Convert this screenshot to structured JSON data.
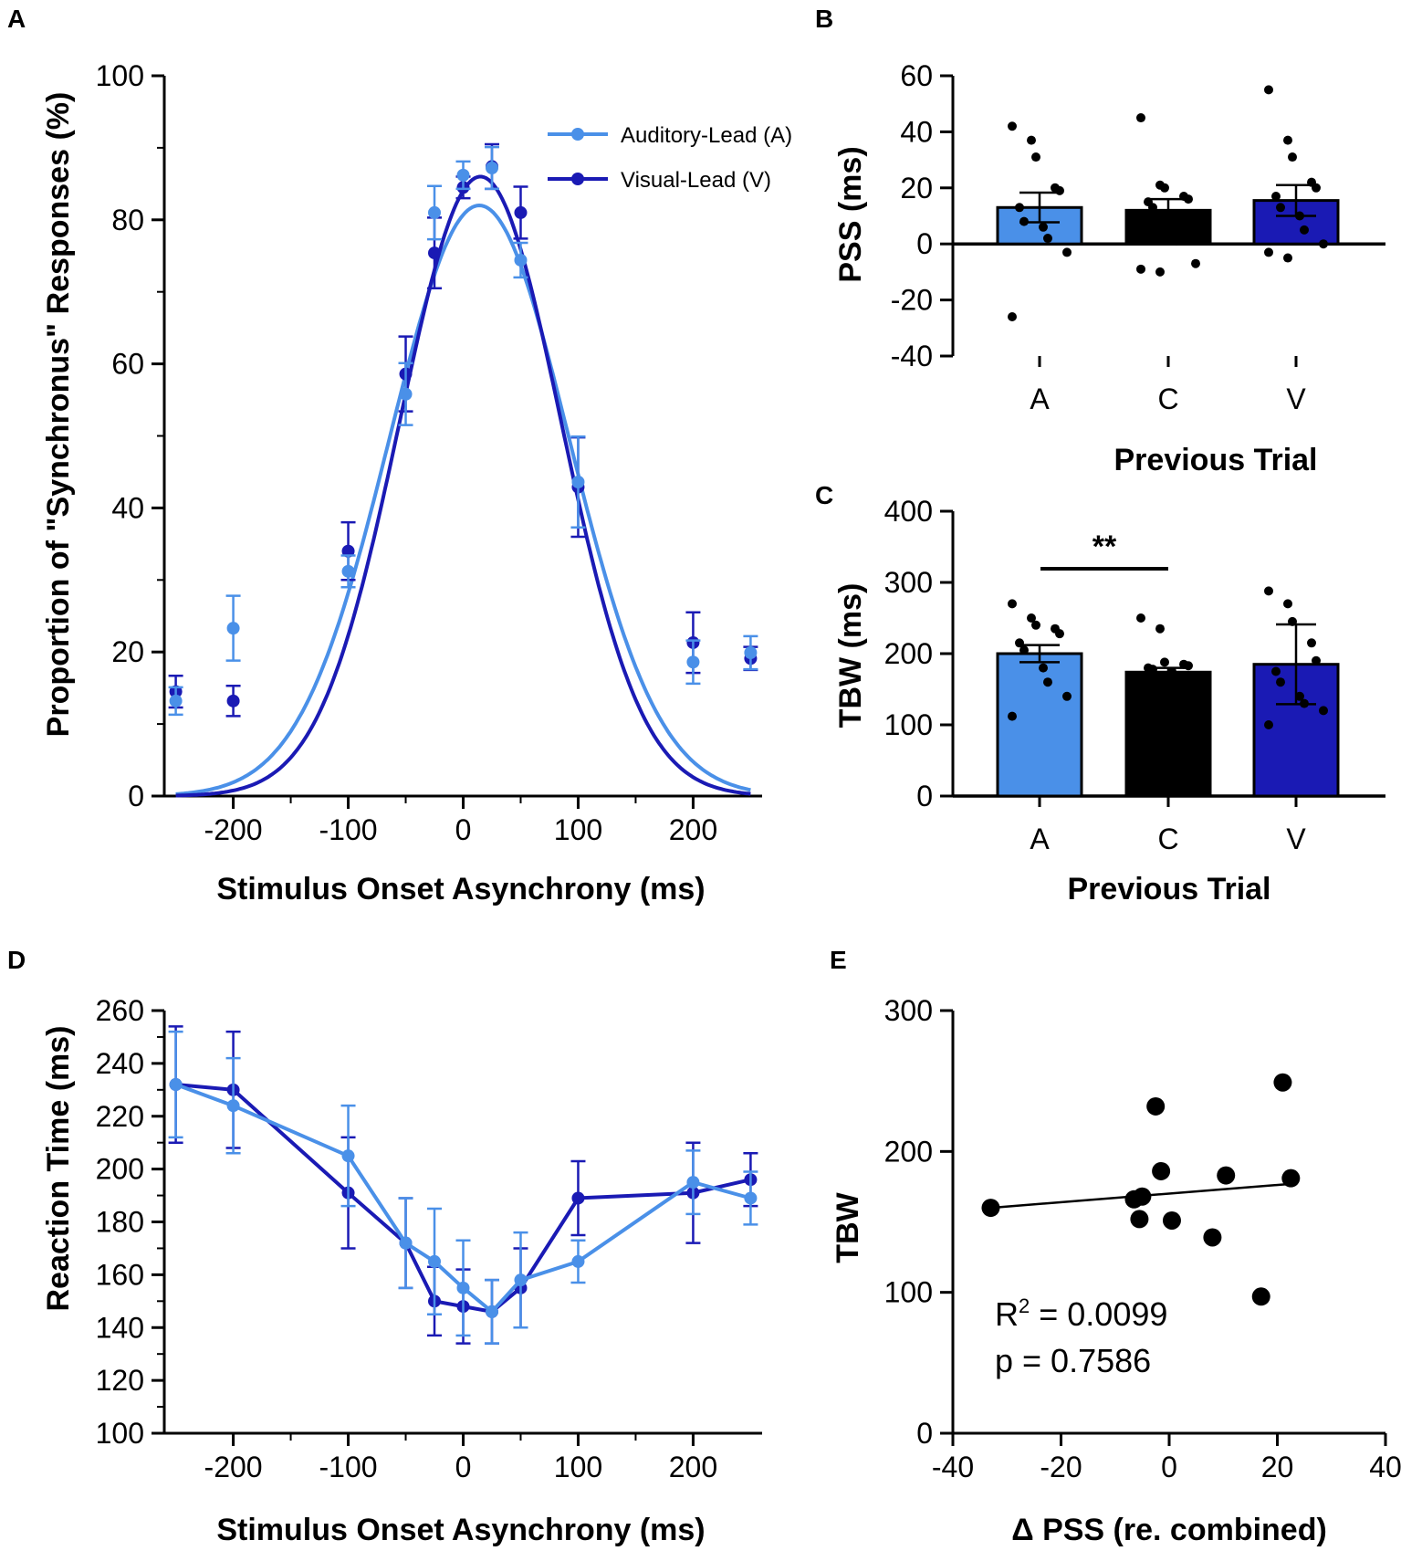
{
  "colors": {
    "light": "#4a90e8",
    "dark": "#1a1ab4",
    "black": "#000000"
  },
  "panels": {
    "A": {
      "label": "A",
      "chart_data": {
        "type": "line",
        "title": "",
        "xlabel": "Stimulus Onset Asynchrony (ms)",
        "ylabel": "Proportion of \"Synchronus\" Responses (%)",
        "xlim": [
          -260,
          260
        ],
        "ylim": [
          0,
          100
        ],
        "xticks": [
          -200,
          -100,
          0,
          100,
          200
        ],
        "yticks": [
          0,
          20,
          40,
          60,
          80,
          100
        ],
        "xtick_labels": [
          "-200",
          "-100",
          "0",
          "100",
          "200"
        ],
        "ytick_labels": [
          "0",
          "20",
          "40",
          "60",
          "80",
          "100"
        ],
        "legend": [
          "Auditory-Lead (A)",
          "Visual-Lead (V)"
        ],
        "legend_position": "top-right",
        "series": [
          {
            "name": "Auditory-Lead (A)",
            "color": "light",
            "x": [
              -250,
              -200,
              -100,
              -50,
              -25,
              0,
              25,
              50,
              100,
              200,
              250
            ],
            "y": [
              13.2,
              23.3,
              31.2,
              55.8,
              81,
              86.2,
              87.2,
              74.4,
              43.6,
              18.6,
              19.9
            ],
            "err": [
              1.9,
              4.5,
              2.2,
              4.3,
              3.7,
              1.9,
              2.9,
              2.4,
              6.3,
              3.0,
              2.3
            ],
            "fit": {
              "mu": 14,
              "sigma": 78,
              "amp": 82
            }
          },
          {
            "name": "Visual-Lead (V)",
            "color": "dark",
            "x": [
              -250,
              -200,
              -100,
              -50,
              -25,
              0,
              25,
              50,
              100,
              200,
              250
            ],
            "y": [
              14.5,
              13.2,
              34,
              58.6,
              75.4,
              84.5,
              87.4,
              81,
              42.9,
              21.3,
              19.1
            ],
            "err": [
              2.2,
              2.1,
              4.0,
              5.2,
              4.9,
              1.5,
              3.1,
              3.6,
              6.9,
              4.2,
              1.6
            ],
            "fit": {
              "mu": 15,
              "sigma": 70,
              "amp": 86
            }
          }
        ]
      }
    },
    "B": {
      "label": "B",
      "chart_data": {
        "type": "bar",
        "title": "",
        "xlabel": "Previous Trial",
        "ylabel": "PSS (ms)",
        "categories": [
          "A",
          "C",
          "V"
        ],
        "bar_colors": [
          "light",
          "black",
          "dark"
        ],
        "values": [
          13,
          12,
          15.5
        ],
        "err": [
          5.3,
          4.0,
          5.5
        ],
        "ylim": [
          -40,
          60
        ],
        "yticks": [
          -40,
          -20,
          0,
          20,
          40,
          60
        ],
        "ytick_labels": [
          "-40",
          "-20",
          "0",
          "20",
          "40",
          "60"
        ],
        "points": [
          [
            42,
            37,
            31,
            20,
            19,
            13,
            8,
            6,
            2,
            -3,
            -26
          ],
          [
            45,
            21,
            20,
            17,
            16,
            15,
            13,
            6,
            1,
            -7,
            -9,
            -10
          ],
          [
            55,
            37,
            31,
            22,
            20,
            17,
            13,
            10,
            5,
            0,
            -3,
            -5
          ]
        ]
      }
    },
    "C": {
      "label": "C",
      "chart_data": {
        "type": "bar",
        "title": "",
        "xlabel": "Previous Trial",
        "ylabel": "TBW (ms)",
        "categories": [
          "A",
          "C",
          "V"
        ],
        "bar_colors": [
          "light",
          "black",
          "dark"
        ],
        "values": [
          200,
          174,
          185
        ],
        "err": [
          12,
          6,
          56
        ],
        "ylim": [
          0,
          400
        ],
        "yticks": [
          0,
          100,
          200,
          300,
          400
        ],
        "ytick_labels": [
          "0",
          "100",
          "200",
          "300",
          "400"
        ],
        "points": [
          [
            270,
            250,
            240,
            235,
            228,
            215,
            205,
            180,
            160,
            140,
            112
          ],
          [
            250,
            235,
            188,
            185,
            183,
            180,
            178,
            175
          ],
          [
            288,
            270,
            245,
            215,
            190,
            175,
            160,
            140,
            130,
            120,
            100
          ]
        ],
        "significance": {
          "between": [
            "A",
            "C"
          ],
          "label": "**"
        }
      }
    },
    "D": {
      "label": "D",
      "chart_data": {
        "type": "line",
        "title": "",
        "xlabel": "Stimulus Onset Asynchrony (ms)",
        "ylabel": "Reaction Time (ms)",
        "xlim": [
          -260,
          260
        ],
        "ylim": [
          100,
          260
        ],
        "xticks": [
          -200,
          -100,
          0,
          100,
          200
        ],
        "yticks": [
          100,
          120,
          140,
          160,
          180,
          200,
          220,
          240,
          260
        ],
        "xtick_labels": [
          "-200",
          "-100",
          "0",
          "100",
          "200"
        ],
        "ytick_labels": [
          "100",
          "120",
          "140",
          "160",
          "180",
          "200",
          "220",
          "240",
          "260"
        ],
        "series": [
          {
            "name": "Visual-Lead (V)",
            "color": "dark",
            "x": [
              -250,
              -200,
              -100,
              -50,
              -25,
              0,
              25,
              50,
              100,
              200,
              250
            ],
            "y": [
              232,
              230,
              191,
              172,
              150,
              148,
              146,
              155,
              189,
              191,
              196
            ],
            "err": [
              22,
              22,
              21,
              17,
              13,
              14,
              12,
              15,
              14,
              19,
              10
            ]
          },
          {
            "name": "Auditory-Lead (A)",
            "color": "light",
            "x": [
              -250,
              -200,
              -100,
              -50,
              -25,
              0,
              25,
              50,
              100,
              200,
              250
            ],
            "y": [
              232,
              224,
              205,
              172,
              165,
              155,
              146,
              158,
              165,
              195,
              189
            ],
            "err": [
              20,
              18,
              19,
              17,
              20,
              18,
              12,
              18,
              8,
              12,
              10
            ]
          }
        ]
      }
    },
    "E": {
      "label": "E",
      "chart_data": {
        "type": "scatter",
        "title": "",
        "xlabel": "Δ PSS (re. combined)",
        "ylabel": "TBW",
        "xlim": [
          -40,
          40
        ],
        "ylim": [
          0,
          300
        ],
        "xticks": [
          -40,
          -20,
          0,
          20,
          40
        ],
        "yticks": [
          0,
          100,
          200,
          300
        ],
        "xtick_labels": [
          "-40",
          "-20",
          "0",
          "20",
          "40"
        ],
        "ytick_labels": [
          "0",
          "100",
          "200",
          "300"
        ],
        "x": [
          -33,
          -6.5,
          -5,
          -5.5,
          -2.5,
          -1.5,
          0.5,
          8,
          10.5,
          17,
          21,
          22.5
        ],
        "y": [
          160,
          166,
          168,
          152,
          232,
          186,
          151,
          139,
          183,
          97,
          249,
          181
        ],
        "fit_line": {
          "x0": -33,
          "y0": 160,
          "x1": 22.5,
          "y1": 177
        },
        "stats": {
          "r2_prefix": "R",
          "r2_sup": "2",
          "r2_value": " = 0.0099",
          "p": "p = 0.7586"
        }
      }
    }
  }
}
